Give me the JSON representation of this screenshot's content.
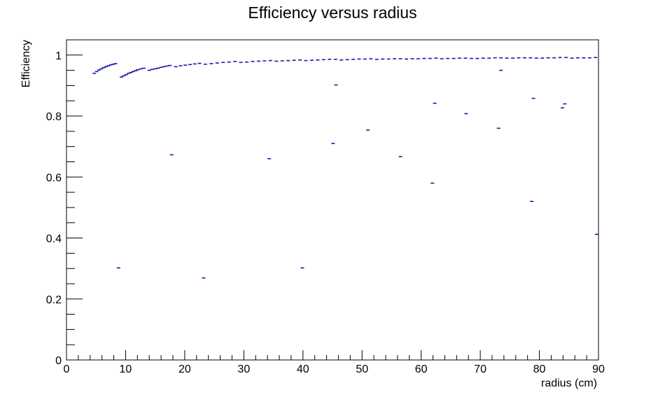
{
  "chart_data": {
    "type": "scatter",
    "title": "Efficiency versus radius",
    "xlabel": "radius (cm)",
    "ylabel": "Efficiency",
    "xlim": [
      0,
      90
    ],
    "ylim": [
      0,
      1.05
    ],
    "xticks": [
      0,
      10,
      20,
      30,
      40,
      50,
      60,
      70,
      80,
      90
    ],
    "xtick_labels": [
      "0",
      "10",
      "20",
      "30",
      "40",
      "50",
      "60",
      "70",
      "80",
      "90"
    ],
    "yticks": [
      0,
      0.2,
      0.4,
      0.6,
      0.8,
      1
    ],
    "ytick_labels": [
      "0",
      "0.2",
      "0.4",
      "0.6",
      "0.8",
      "1"
    ],
    "grid": false,
    "marker_color": "#1a1aa8",
    "series": [
      {
        "points": [
          [
            4.7,
            0.94
          ],
          [
            5.1,
            0.946
          ],
          [
            5.5,
            0.951
          ],
          [
            5.9,
            0.955
          ],
          [
            6.3,
            0.959
          ],
          [
            6.7,
            0.962
          ],
          [
            7.1,
            0.965
          ],
          [
            7.5,
            0.968
          ],
          [
            7.9,
            0.97
          ],
          [
            8.3,
            0.972
          ],
          [
            9.3,
            0.928
          ],
          [
            9.7,
            0.932
          ],
          [
            10.1,
            0.936
          ],
          [
            10.5,
            0.94
          ],
          [
            10.9,
            0.943
          ],
          [
            11.3,
            0.946
          ],
          [
            11.7,
            0.949
          ],
          [
            12.1,
            0.952
          ],
          [
            12.6,
            0.955
          ],
          [
            13.1,
            0.957
          ],
          [
            14.0,
            0.95
          ],
          [
            14.5,
            0.953
          ],
          [
            15.0,
            0.955
          ],
          [
            15.5,
            0.957
          ],
          [
            16.0,
            0.96
          ],
          [
            16.5,
            0.962
          ],
          [
            17.0,
            0.964
          ],
          [
            17.5,
            0.966
          ],
          [
            18.5,
            0.962
          ],
          [
            19.3,
            0.965
          ],
          [
            20.1,
            0.967
          ],
          [
            20.9,
            0.969
          ],
          [
            21.7,
            0.971
          ],
          [
            22.5,
            0.973
          ],
          [
            23.5,
            0.97
          ],
          [
            24.5,
            0.972
          ],
          [
            25.5,
            0.974
          ],
          [
            26.5,
            0.976
          ],
          [
            27.5,
            0.977
          ],
          [
            28.5,
            0.979
          ],
          [
            29.5,
            0.976
          ],
          [
            30.5,
            0.977
          ],
          [
            31.5,
            0.979
          ],
          [
            32.5,
            0.98
          ],
          [
            33.5,
            0.981
          ],
          [
            34.5,
            0.982
          ],
          [
            35.5,
            0.98
          ],
          [
            36.5,
            0.981
          ],
          [
            37.5,
            0.982
          ],
          [
            38.5,
            0.983
          ],
          [
            39.5,
            0.984
          ],
          [
            40.5,
            0.982
          ],
          [
            41.5,
            0.983
          ],
          [
            42.5,
            0.984
          ],
          [
            43.5,
            0.985
          ],
          [
            44.5,
            0.986
          ],
          [
            45.5,
            0.986
          ],
          [
            46.5,
            0.984
          ],
          [
            47.5,
            0.985
          ],
          [
            48.5,
            0.986
          ],
          [
            49.5,
            0.987
          ],
          [
            50.5,
            0.987
          ],
          [
            51.5,
            0.988
          ],
          [
            52.5,
            0.986
          ],
          [
            53.5,
            0.987
          ],
          [
            54.5,
            0.987
          ],
          [
            55.5,
            0.988
          ],
          [
            56.5,
            0.988
          ],
          [
            57.5,
            0.987
          ],
          [
            58.5,
            0.988
          ],
          [
            59.5,
            0.988
          ],
          [
            60.5,
            0.989
          ],
          [
            61.5,
            0.989
          ],
          [
            62.5,
            0.99
          ],
          [
            63.5,
            0.988
          ],
          [
            64.5,
            0.989
          ],
          [
            65.5,
            0.989
          ],
          [
            66.5,
            0.99
          ],
          [
            67.5,
            0.99
          ],
          [
            68.5,
            0.989
          ],
          [
            69.5,
            0.989
          ],
          [
            70.5,
            0.99
          ],
          [
            71.5,
            0.99
          ],
          [
            72.5,
            0.991
          ],
          [
            73.5,
            0.991
          ],
          [
            74.5,
            0.99
          ],
          [
            75.5,
            0.99
          ],
          [
            76.5,
            0.991
          ],
          [
            77.5,
            0.991
          ],
          [
            78.5,
            0.991
          ],
          [
            79.5,
            0.99
          ],
          [
            80.5,
            0.99
          ],
          [
            81.5,
            0.991
          ],
          [
            82.5,
            0.991
          ],
          [
            83.5,
            0.992
          ],
          [
            84.5,
            0.992
          ],
          [
            85.5,
            0.99
          ],
          [
            86.5,
            0.991
          ],
          [
            87.5,
            0.991
          ],
          [
            88.5,
            0.991
          ],
          [
            89.5,
            0.992
          ],
          [
            8.8,
            0.302
          ],
          [
            17.8,
            0.673
          ],
          [
            23.2,
            0.269
          ],
          [
            34.3,
            0.66
          ],
          [
            39.9,
            0.302
          ],
          [
            45.1,
            0.71
          ],
          [
            45.6,
            0.902
          ],
          [
            51.0,
            0.754
          ],
          [
            56.5,
            0.667
          ],
          [
            61.9,
            0.58
          ],
          [
            62.3,
            0.842
          ],
          [
            67.6,
            0.808
          ],
          [
            73.1,
            0.76
          ],
          [
            73.5,
            0.95
          ],
          [
            78.7,
            0.52
          ],
          [
            79.0,
            0.858
          ],
          [
            83.9,
            0.827
          ],
          [
            84.3,
            0.84
          ],
          [
            89.7,
            0.412
          ]
        ]
      }
    ]
  }
}
